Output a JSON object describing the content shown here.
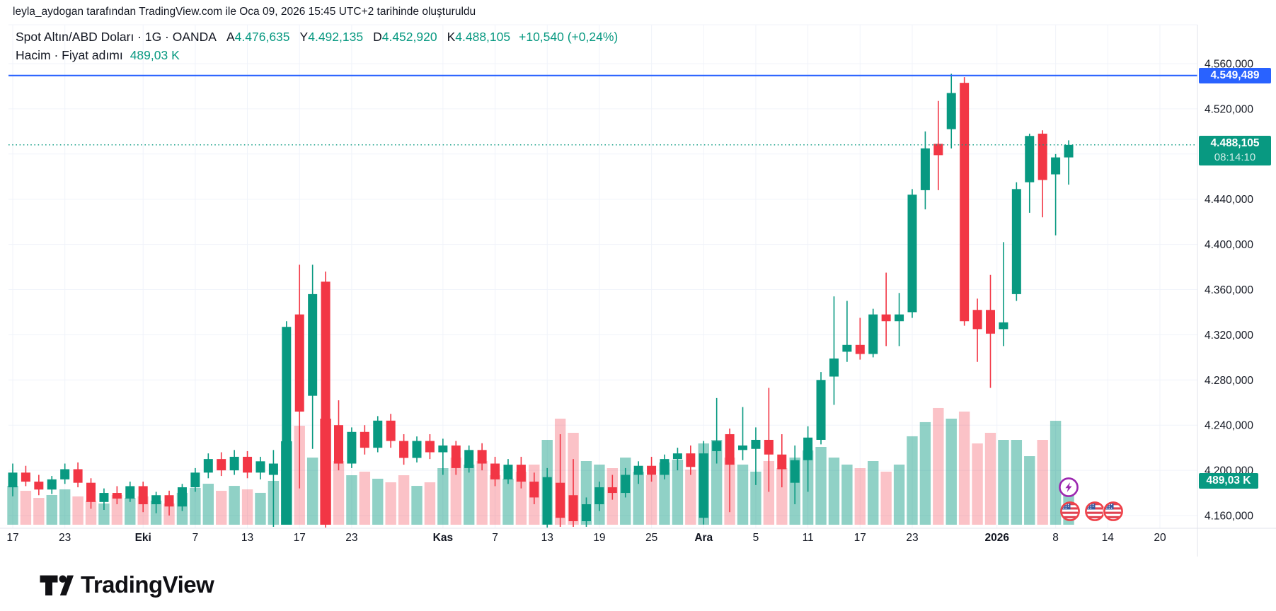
{
  "attribution": "leyla_aydogan tarafından TradingView.com ile Oca 09, 2026 15:45 UTC+2 tarihinde oluşturuldu",
  "header": {
    "symbol_title": "Spot Altın/ABD Doları · 1G · OANDA",
    "ohlc": [
      {
        "k": "A",
        "v": "4.476,635"
      },
      {
        "k": "Y",
        "v": "4.492,135"
      },
      {
        "k": "D",
        "v": "4.452,920"
      },
      {
        "k": "K",
        "v": "4.488,105"
      }
    ],
    "change": "+10,540 (+0,24%)",
    "volume_row_label": "Hacim · Fiyat adımı",
    "volume_value": "489,03 K"
  },
  "badges": {
    "alert_price": "4.549,489",
    "last_price": "4.488,105",
    "countdown": "08:14:10",
    "volume": "489,03 K"
  },
  "footer_logo_text": "TradingView",
  "colors": {
    "up": "#089981",
    "down": "#F23645",
    "alert_line": "#2962FF",
    "grid": "#F0F3FA",
    "separator": "#E0E3EB",
    "axis_text": "#131722",
    "flash_icon": "#9C27B0",
    "flag_ring": "#EF4048"
  },
  "chart_data": {
    "type": "candlestick_with_volume",
    "title": "Spot Altın/ABD Doları · 1G · OANDA",
    "price_axis": {
      "ticks": [
        {
          "v": 4560,
          "t": "4.560,000"
        },
        {
          "v": 4520,
          "t": "4.520,000"
        },
        {
          "v": 4480,
          "t": "4.480,000"
        },
        {
          "v": 4440,
          "t": "4.440,000"
        },
        {
          "v": 4400,
          "t": "4.400,000"
        },
        {
          "v": 4360,
          "t": "4.360,000"
        },
        {
          "v": 4320,
          "t": "4.320,000"
        },
        {
          "v": 4280,
          "t": "4.280,000"
        },
        {
          "v": 4240,
          "t": "4.240,000"
        },
        {
          "v": 4200,
          "t": "4.200,000"
        },
        {
          "v": 4160,
          "t": "4.160,000"
        }
      ],
      "visible_range": [
        4148,
        4568
      ]
    },
    "time_axis": {
      "labels": [
        {
          "t": "17",
          "i": 0,
          "b": false
        },
        {
          "t": "23",
          "i": 4,
          "b": false
        },
        {
          "t": "Eki",
          "i": 10,
          "b": true
        },
        {
          "t": "7",
          "i": 14,
          "b": false
        },
        {
          "t": "13",
          "i": 18,
          "b": false
        },
        {
          "t": "17",
          "i": 22,
          "b": false
        },
        {
          "t": "23",
          "i": 26,
          "b": false
        },
        {
          "t": "Kas",
          "i": 33,
          "b": true
        },
        {
          "t": "7",
          "i": 37,
          "b": false
        },
        {
          "t": "13",
          "i": 41,
          "b": false
        },
        {
          "t": "19",
          "i": 45,
          "b": false
        },
        {
          "t": "25",
          "i": 49,
          "b": false
        },
        {
          "t": "Ara",
          "i": 53,
          "b": true
        },
        {
          "t": "5",
          "i": 57,
          "b": false
        },
        {
          "t": "11",
          "i": 61,
          "b": false
        },
        {
          "t": "17",
          "i": 65,
          "b": false
        },
        {
          "t": "23",
          "i": 69,
          "b": false
        },
        {
          "t": "2026",
          "i": 75.5,
          "b": true
        },
        {
          "t": "8",
          "i": 80,
          "b": false
        },
        {
          "t": "14",
          "i": 84,
          "b": false
        },
        {
          "t": "20",
          "i": 88,
          "b": false
        }
      ]
    },
    "alert_line_price": 4549.489,
    "last_price": 4488.105,
    "candles_ohlc": [
      [
        4185,
        4206,
        4177,
        4198
      ],
      [
        4198,
        4204,
        4186,
        4190
      ],
      [
        4190,
        4196,
        4178,
        4183
      ],
      [
        4183,
        4195,
        4179,
        4192
      ],
      [
        4192,
        4206,
        4188,
        4201
      ],
      [
        4201,
        4207,
        4185,
        4189
      ],
      [
        4189,
        4193,
        4166,
        4172
      ],
      [
        4172,
        4184,
        4165,
        4180
      ],
      [
        4180,
        4186,
        4170,
        4175
      ],
      [
        4175,
        4190,
        4172,
        4186
      ],
      [
        4186,
        4190,
        4163,
        4170
      ],
      [
        4170,
        4181,
        4162,
        4178
      ],
      [
        4178,
        4182,
        4160,
        4168
      ],
      [
        4168,
        4188,
        4164,
        4185
      ],
      [
        4185,
        4202,
        4181,
        4198
      ],
      [
        4198,
        4215,
        4193,
        4210
      ],
      [
        4210,
        4216,
        4195,
        4200
      ],
      [
        4200,
        4218,
        4196,
        4212
      ],
      [
        4212,
        4217,
        4193,
        4198
      ],
      [
        4198,
        4212,
        4192,
        4208
      ],
      [
        4196,
        4218,
        4150,
        4206
      ],
      [
        4211,
        4332,
        4196,
        4327
      ],
      [
        4338,
        4382,
        4184,
        4252
      ],
      [
        4266,
        4382,
        4219,
        4356
      ],
      [
        4367,
        4376,
        4148,
        4152
      ],
      [
        4240,
        4262,
        4200,
        4206
      ],
      [
        4206,
        4238,
        4202,
        4234
      ],
      [
        4234,
        4240,
        4214,
        4220
      ],
      [
        4220,
        4248,
        4216,
        4244
      ],
      [
        4244,
        4250,
        4220,
        4226
      ],
      [
        4226,
        4232,
        4205,
        4211
      ],
      [
        4211,
        4230,
        4207,
        4226
      ],
      [
        4226,
        4232,
        4210,
        4216
      ],
      [
        4216,
        4228,
        4196,
        4222
      ],
      [
        4222,
        4226,
        4196,
        4202
      ],
      [
        4202,
        4222,
        4198,
        4218
      ],
      [
        4218,
        4224,
        4200,
        4206
      ],
      [
        4206,
        4212,
        4186,
        4192
      ],
      [
        4192,
        4210,
        4188,
        4205
      ],
      [
        4205,
        4212,
        4184,
        4190
      ],
      [
        4190,
        4198,
        4170,
        4176
      ],
      [
        4152,
        4202,
        4148,
        4194
      ],
      [
        4189,
        4232,
        4150,
        4158
      ],
      [
        4178,
        4210,
        4150,
        4155
      ],
      [
        4155,
        4176,
        4150,
        4170
      ],
      [
        4170,
        4190,
        4164,
        4185
      ],
      [
        4185,
        4196,
        4174,
        4180
      ],
      [
        4180,
        4202,
        4176,
        4196
      ],
      [
        4196,
        4208,
        4188,
        4204
      ],
      [
        4204,
        4212,
        4190,
        4196
      ],
      [
        4196,
        4214,
        4192,
        4210
      ],
      [
        4210,
        4220,
        4200,
        4215
      ],
      [
        4215,
        4222,
        4196,
        4203
      ],
      [
        4158,
        4226,
        4152,
        4215
      ],
      [
        4217,
        4264,
        4206,
        4226
      ],
      [
        4232,
        4237,
        4163,
        4205
      ],
      [
        4218,
        4256,
        4209,
        4222
      ],
      [
        4219,
        4238,
        4187,
        4227
      ],
      [
        4227,
        4273,
        4181,
        4214
      ],
      [
        4214,
        4232,
        4185,
        4201
      ],
      [
        4189,
        4222,
        4170,
        4209
      ],
      [
        4209,
        4239,
        4181,
        4229
      ],
      [
        4227,
        4287,
        4223,
        4280
      ],
      [
        4283,
        4354,
        4258,
        4299
      ],
      [
        4305,
        4350,
        4296,
        4311
      ],
      [
        4311,
        4335,
        4298,
        4303
      ],
      [
        4303,
        4343,
        4300,
        4338
      ],
      [
        4338,
        4375,
        4310,
        4332
      ],
      [
        4332,
        4357,
        4310,
        4338
      ],
      [
        4340,
        4449,
        4335,
        4444
      ],
      [
        4448,
        4500,
        4431,
        4485
      ],
      [
        4489,
        4527,
        4448,
        4479
      ],
      [
        4502,
        4551,
        4485,
        4534
      ],
      [
        4543,
        4548,
        4328,
        4332
      ],
      [
        4342,
        4352,
        4296,
        4325
      ],
      [
        4342,
        4373,
        4273,
        4321
      ],
      [
        4325,
        4402,
        4310,
        4331
      ],
      [
        4356,
        4455,
        4350,
        4449
      ],
      [
        4455,
        4498,
        4428,
        4496
      ],
      [
        4498,
        4501,
        4424,
        4457
      ],
      [
        4462,
        4480,
        4408,
        4477
      ],
      [
        4477,
        4492.135,
        4452.92,
        4488.105
      ]
    ],
    "volumes_k": [
      434,
      379,
      300,
      332,
      395,
      316,
      269,
      237,
      332,
      300,
      316,
      269,
      237,
      356,
      411,
      458,
      379,
      434,
      395,
      356,
      490,
      932,
      1106,
      750,
      1185,
      711,
      553,
      593,
      514,
      474,
      553,
      434,
      474,
      632,
      750,
      672,
      711,
      553,
      514,
      593,
      672,
      948,
      1185,
      1027,
      711,
      672,
      632,
      750,
      593,
      553,
      695,
      727,
      616,
      908,
      948,
      750,
      672,
      593,
      711,
      632,
      750,
      830,
      869,
      750,
      672,
      632,
      711,
      593,
      672,
      988,
      1146,
      1304,
      1185,
      1264,
      908,
      1027,
      948,
      948,
      766,
      948,
      1161,
      489.03
    ],
    "solid_volume_indices": [
      21,
      24
    ],
    "grid": true,
    "legend_position": "top-left"
  }
}
